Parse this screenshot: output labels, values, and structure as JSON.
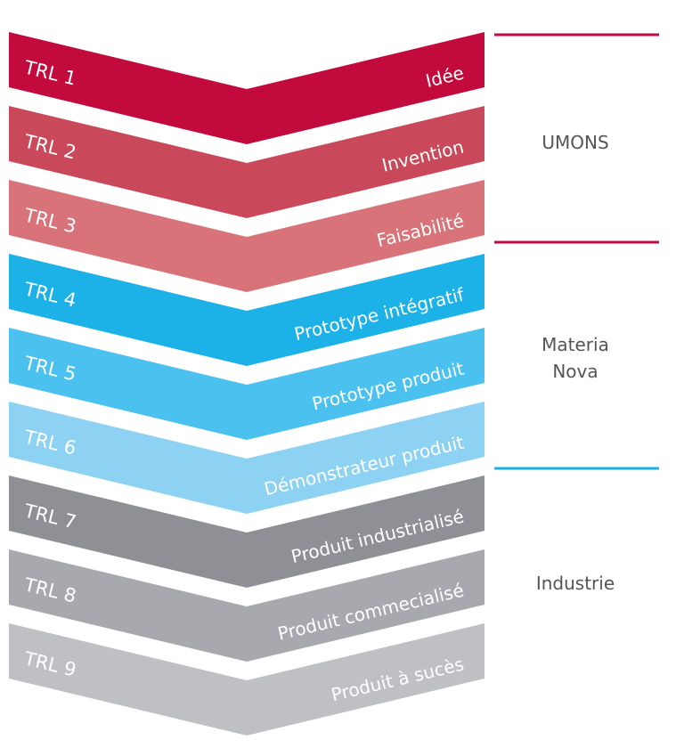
{
  "levels": [
    {
      "trl": "TRL 1",
      "stage": "Idée",
      "color": "#c20a3c"
    },
    {
      "trl": "TRL 2",
      "stage": "Invention",
      "color": "#c9495a"
    },
    {
      "trl": "TRL 3",
      "stage": "Faisabilité",
      "color": "#d87479"
    },
    {
      "trl": "TRL 4",
      "stage": "Prototype intégratif",
      "color": "#1cb1e7"
    },
    {
      "trl": "TRL 5",
      "stage": "Prototype produit",
      "color": "#4ac1ee"
    },
    {
      "trl": "TRL 6",
      "stage": "Démonstrateur produit",
      "color": "#8dd2f2"
    },
    {
      "trl": "TRL 7",
      "stage": "Produit industrialisé",
      "color": "#8f9095"
    },
    {
      "trl": "TRL 8",
      "stage": "Produit commecialisé",
      "color": "#a8a9ae"
    },
    {
      "trl": "TRL 9",
      "stage": "Produit à sucès",
      "color": "#bfc0c4"
    }
  ],
  "groups": [
    {
      "name": "UMONS",
      "range": [
        "TRL 1",
        "TRL 3"
      ]
    },
    {
      "name": "Materia\nNova",
      "range": [
        "TRL 4",
        "TRL 6"
      ]
    },
    {
      "name": "Industrie",
      "range": [
        "TRL 7",
        "TRL 9"
      ]
    }
  ],
  "separator_colors": [
    "#c20a3c",
    "#c20a3c",
    "#1cb1e7"
  ]
}
